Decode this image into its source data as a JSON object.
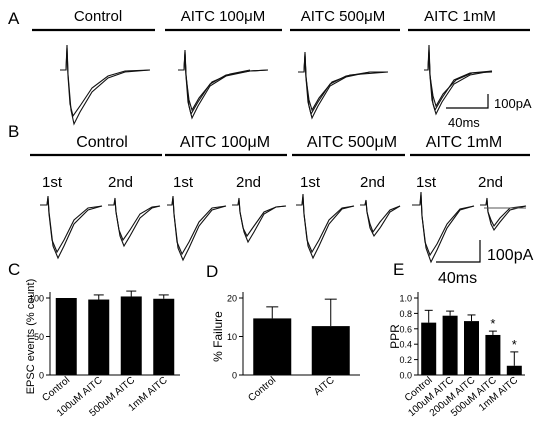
{
  "panel_letters": {
    "A": "A",
    "B": "B",
    "C": "C",
    "D": "D",
    "E": "E"
  },
  "rowA": {
    "conditions": [
      "Control",
      "AITC  100μM",
      "AITC  500μM",
      "AITC  1mM"
    ],
    "scale": {
      "current": "100pA",
      "time": "40ms"
    }
  },
  "rowB": {
    "conditions": [
      "Control",
      "AITC  100μM",
      "AITC  500μM",
      "AITC  1mM"
    ],
    "pulses": [
      "1st",
      "2nd"
    ],
    "scale": {
      "current": "100pA",
      "time": "40ms"
    }
  },
  "chart_data": [
    {
      "panel": "C",
      "type": "bar",
      "ylabel": "EPSC events  (% count)",
      "categories": [
        "Control",
        "100uM AITC",
        "500uM AITC",
        "1mM AITC"
      ],
      "values": [
        100,
        98,
        102,
        99
      ],
      "errors": [
        0,
        6,
        7,
        5
      ],
      "ylim": [
        0,
        100
      ],
      "yticks": [
        0,
        50,
        100
      ]
    },
    {
      "panel": "D",
      "type": "bar",
      "ylabel": "% Failure",
      "categories": [
        "Control",
        "AITC"
      ],
      "values": [
        14.7,
        12.7
      ],
      "errors": [
        3,
        7
      ],
      "ylim": [
        0,
        20
      ],
      "yticks": [
        0,
        10,
        20
      ]
    },
    {
      "panel": "E",
      "type": "bar",
      "ylabel": "PPR",
      "categories": [
        "Control",
        "100uM AITC",
        "200uM AITC",
        "500uM AITC",
        "1mM AITC"
      ],
      "values": [
        0.68,
        0.77,
        0.7,
        0.52,
        0.12
      ],
      "errors": [
        0.16,
        0.06,
        0.08,
        0.05,
        0.18
      ],
      "significance": [
        "",
        "",
        "",
        "*",
        "*"
      ],
      "ylim": [
        0,
        1.0
      ],
      "yticks": [
        0.0,
        0.2,
        0.4,
        0.6,
        0.8,
        1.0
      ]
    }
  ]
}
